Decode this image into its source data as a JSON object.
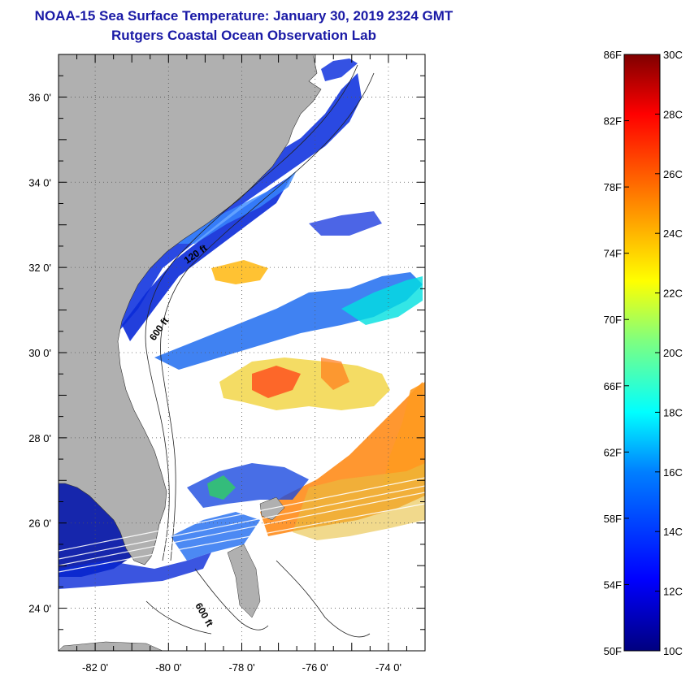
{
  "header": {
    "title": "NOAA-15 Sea Surface Temperature:  January 30, 2019 2324 GMT",
    "subtitle": "Rutgers Coastal Ocean Observation Lab"
  },
  "map": {
    "lon_range": [
      -83,
      -73
    ],
    "lat_range": [
      23,
      37
    ],
    "lon_ticks": [
      {
        "value": -82,
        "label": "-82 0'"
      },
      {
        "value": -80,
        "label": "-80 0'"
      },
      {
        "value": -78,
        "label": "-78 0'"
      },
      {
        "value": -76,
        "label": "-76 0'"
      },
      {
        "value": -74,
        "label": "-74 0'"
      }
    ],
    "lat_ticks": [
      {
        "value": 36,
        "label": "36 0'"
      },
      {
        "value": 34,
        "label": "34 0'"
      },
      {
        "value": 32,
        "label": "32 0'"
      },
      {
        "value": 30,
        "label": "30 0'"
      },
      {
        "value": 28,
        "label": "28 0'"
      },
      {
        "value": 26,
        "label": "26 0'"
      },
      {
        "value": 24,
        "label": "24 0'"
      }
    ],
    "grid": "dotted",
    "land_color": "#b0b0b0",
    "contour_labels": [
      "120 ft",
      "600 ft",
      "600 ft"
    ]
  },
  "colorbar": {
    "fahrenheit_labels": [
      "86F",
      "82F",
      "78F",
      "74F",
      "70F",
      "66F",
      "62F",
      "58F",
      "54F",
      "50F"
    ],
    "celsius_labels": [
      "30C",
      "28C",
      "26C",
      "24C",
      "22C",
      "20C",
      "18C",
      "16C",
      "14C",
      "12C",
      "10C"
    ],
    "range_c": [
      10,
      30
    ],
    "colors": [
      "#00007f",
      "#0000ff",
      "#007fff",
      "#00ffff",
      "#7fff7f",
      "#ffff00",
      "#ff7f00",
      "#ff0000",
      "#7f0000"
    ]
  }
}
